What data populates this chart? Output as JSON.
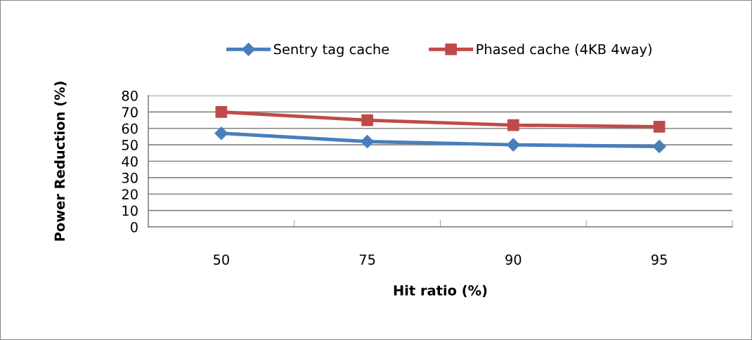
{
  "chart_data": {
    "type": "line",
    "xlabel": "Hit ratio (%)",
    "ylabel": "Power Reduction (%)",
    "categories": [
      "50",
      "75",
      "90",
      "95"
    ],
    "series": [
      {
        "name": "Sentry tag cache",
        "color": "#4a7ebb",
        "marker": "diamond",
        "values": [
          57,
          52,
          50,
          49
        ]
      },
      {
        "name": "Phased cache (4KB 4way)",
        "color": "#be4b48",
        "marker": "square",
        "values": [
          70,
          65,
          62,
          61
        ]
      }
    ],
    "ylim": [
      0,
      80
    ],
    "yticks": [
      0,
      10,
      20,
      30,
      40,
      50,
      60,
      70,
      80
    ],
    "grid": "y",
    "legend": "top",
    "line_style": "solid"
  }
}
